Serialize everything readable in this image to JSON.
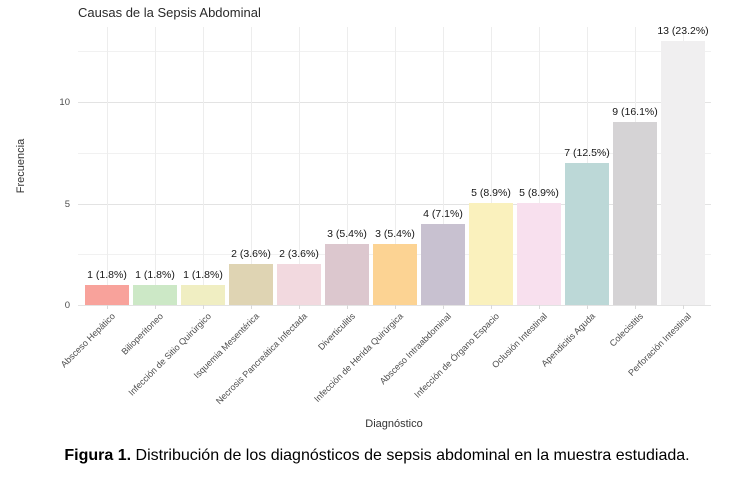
{
  "chart_data": {
    "type": "bar",
    "title": "Causas de la Sepsis Abdominal",
    "xlabel": "Diagnóstico",
    "ylabel": "Frecuencia",
    "ylim": [
      0,
      13.7
    ],
    "yticks": [
      0,
      5,
      10
    ],
    "minor_gridlines": [
      2.5,
      7.5,
      12.5
    ],
    "grid": true,
    "legend": "none",
    "categories": [
      "Absceso Hepático",
      "Bilioperitoneo",
      "Infección de Sitio Quirúrgico",
      "Isquemia Mesentérica",
      "Necrosis Pancreática Infectada",
      "Diverticulitis",
      "Infección de Herida Quirúrgica",
      "Absceso Intraabdominal",
      "Infección de Órgano Espacio",
      "Oclusión Intestinal",
      "Apendicitis Aguda",
      "Colecistitis",
      "Perforación Intestinal"
    ],
    "values": [
      1,
      1,
      1,
      2,
      2,
      3,
      3,
      4,
      5,
      5,
      7,
      9,
      13
    ],
    "value_labels": [
      "1 (1.8%)",
      "1 (1.8%)",
      "1 (1.8%)",
      "2 (3.6%)",
      "2 (3.6%)",
      "3 (5.4%)",
      "3 (5.4%)",
      "4 (7.1%)",
      "5 (8.9%)",
      "5 (8.9%)",
      "7 (12.5%)",
      "9 (16.1%)",
      "13 (23.2%)"
    ],
    "bar_colors": [
      "#F8A29B",
      "#CCE8C6",
      "#F0EEC2",
      "#DFD4B3",
      "#F2D9DF",
      "#DCC7CE",
      "#FCD393",
      "#C8C1D0",
      "#FAF1BD",
      "#F8E0EE",
      "#BCD8D7",
      "#D5D3D5",
      "#F0EFF0"
    ],
    "gridline_colors": {
      "major": "#E3E3E3",
      "minor": "#F1F1F1",
      "vertical": "#EDEDED"
    }
  },
  "caption": {
    "prefix": "Figura 1.",
    "text": "Distribución de los diagnósticos de sepsis abdominal en la muestra estudiada."
  }
}
